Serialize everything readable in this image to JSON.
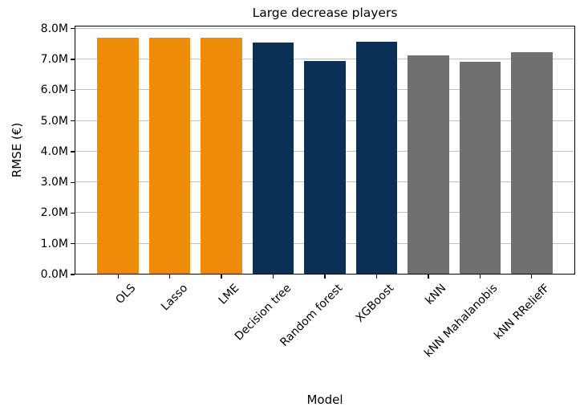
{
  "figure": {
    "background_color": "#ffffff",
    "text_color": "#000000"
  },
  "chart_data": {
    "type": "bar",
    "title": "Large decrease players",
    "xlabel": "Model",
    "ylabel": "RMSE (€)",
    "categories": [
      "OLS",
      "Lasso",
      "LME",
      "Decision tree",
      "Random forest",
      "XGBoost",
      "kNN",
      "kNN Mahalanobis",
      "kNN RReliefF"
    ],
    "values": [
      7.7,
      7.7,
      7.7,
      7.56,
      6.95,
      7.58,
      7.14,
      6.93,
      7.23
    ],
    "value_unit": "millions of €",
    "bar_colors": [
      "#ee8c0a",
      "#ee8c0a",
      "#ee8c0a",
      "#0a3055",
      "#0a3055",
      "#0a3055",
      "#707070",
      "#707070",
      "#707070"
    ],
    "palette": {
      "orange": "#ee8c0a",
      "navy": "#0a3055",
      "gray": "#707070"
    },
    "y_tick_values": [
      0,
      1,
      2,
      3,
      4,
      5,
      6,
      7,
      8
    ],
    "y_tick_labels": [
      "0.0M",
      "1.0M",
      "2.0M",
      "3.0M",
      "4.0M",
      "5.0M",
      "6.0M",
      "7.0M",
      "8.0M"
    ],
    "ylim": [
      0,
      8.1
    ],
    "xlim": [
      -0.84,
      8.84
    ],
    "bar_width": 0.8,
    "x_tick_rotation": 45,
    "grid": "horizontal",
    "grid_color": "#c0c0c0",
    "legend": "none"
  }
}
